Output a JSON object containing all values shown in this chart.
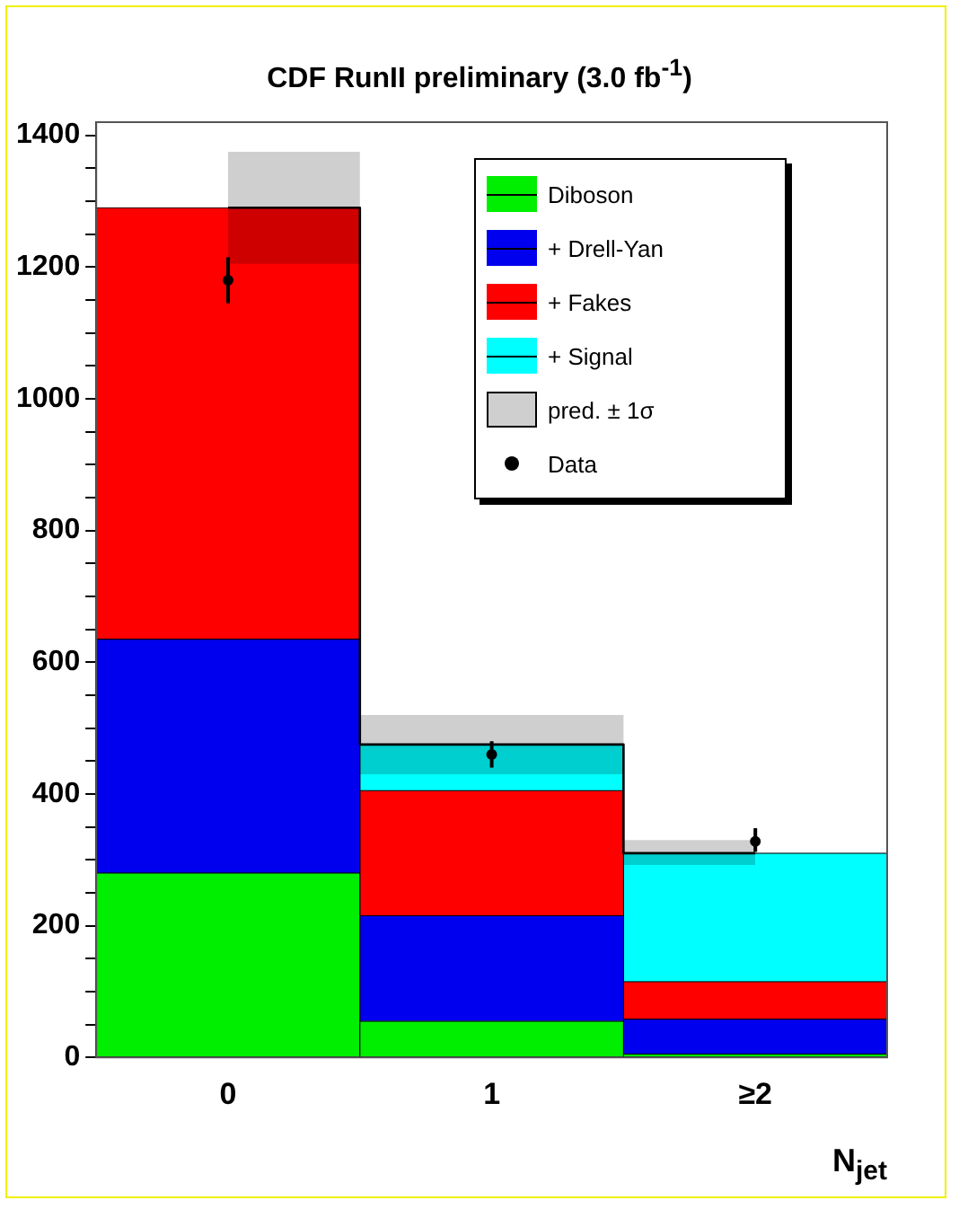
{
  "chart_data": {
    "type": "bar",
    "title": "CDF RunII preliminary (3.0 fb$^{-1}$)",
    "xlabel": "N$_{jet}$",
    "categories": [
      "0",
      "1",
      "≥2"
    ],
    "stacked": true,
    "series": [
      {
        "name": "Diboson",
        "color": "#00ee00",
        "values": [
          280,
          55,
          5
        ]
      },
      {
        "name": "+ Drell-Yan",
        "color": "#0000ee",
        "values": [
          355,
          160,
          53
        ]
      },
      {
        "name": "+ Fakes",
        "color": "#ff0000",
        "values": [
          655,
          190,
          57
        ]
      },
      {
        "name": "+ Signal",
        "color": "#00ffff",
        "values": [
          0,
          70,
          195
        ]
      },
      {
        "name": "pred. ± 1σ",
        "type": "step",
        "color": "#000000",
        "values": [
          1290,
          475,
          310
        ],
        "lower": [
          1205,
          430,
          292
        ],
        "upper": [
          1375,
          520,
          330
        ]
      },
      {
        "name": "Data",
        "type": "scatter",
        "color": "#000000",
        "marker": "circle",
        "x": [
          "0",
          "1",
          "≥2"
        ],
        "values": [
          1180,
          460,
          328
        ],
        "errors": [
          35,
          20,
          [
            312,
            348
          ]
        ]
      }
    ],
    "ylim": [
      0,
      1420
    ],
    "yticks": [
      0,
      {
        "value": 50,
        "label": null
      },
      {
        "value": 100,
        "label": null
      },
      {
        "value": 150,
        "label": null
      },
      200,
      {
        "value": 250,
        "label": null
      },
      {
        "value": 300,
        "label": null
      },
      {
        "value": 350,
        "label": null
      },
      400,
      {
        "value": 450,
        "label": null
      },
      {
        "value": 500,
        "label": null
      },
      {
        "value": 550,
        "label": null
      },
      600,
      {
        "value": 650,
        "label": null
      },
      {
        "value": 700,
        "label": null
      },
      {
        "value": 750,
        "label": null
      },
      800,
      {
        "value": 850,
        "label": null
      },
      {
        "value": 900,
        "label": null
      },
      {
        "value": 950,
        "label": null
      },
      1000,
      {
        "value": 1050,
        "label": null
      },
      {
        "value": 1100,
        "label": null
      },
      {
        "value": 1150,
        "label": null
      },
      1200,
      {
        "value": 1250,
        "label": null
      },
      {
        "value": 1300,
        "label": null
      },
      {
        "value": 1350,
        "label": null
      },
      1400
    ],
    "grid": false,
    "legend": "top right"
  }
}
